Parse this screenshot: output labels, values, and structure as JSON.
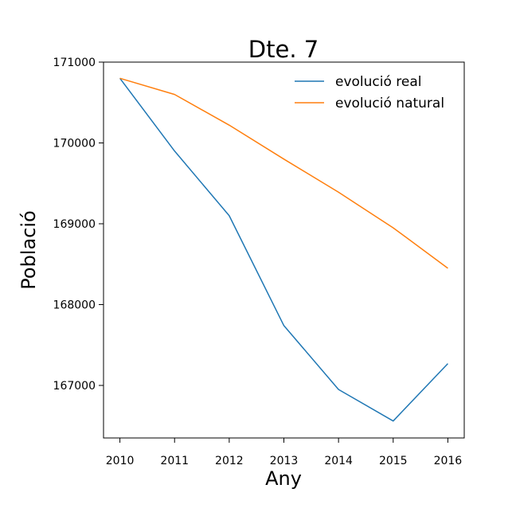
{
  "chart_data": {
    "type": "line",
    "title": "Dte. 7",
    "xlabel": "Any",
    "ylabel": "Població",
    "x": [
      2010,
      2011,
      2012,
      2013,
      2014,
      2015,
      2016
    ],
    "x_tick_labels": [
      "2010",
      "2011",
      "2012",
      "2013",
      "2014",
      "2015",
      "2016"
    ],
    "y_ticks": [
      167000,
      168000,
      169000,
      170000,
      171000
    ],
    "y_tick_labels": [
      "167000",
      "168000",
      "169000",
      "170000",
      "171000"
    ],
    "xlim": [
      2009.7,
      2016.3
    ],
    "ylim": [
      166350,
      171000
    ],
    "grid": false,
    "legend_position": "top-right",
    "series": [
      {
        "name": "evolució real",
        "color": "#1f77b4",
        "values": [
          170800,
          169900,
          169100,
          167740,
          166950,
          166560,
          167270
        ]
      },
      {
        "name": "evolució natural",
        "color": "#ff7f0e",
        "values": [
          170800,
          170600,
          170220,
          169800,
          169390,
          168950,
          168450
        ]
      }
    ]
  }
}
